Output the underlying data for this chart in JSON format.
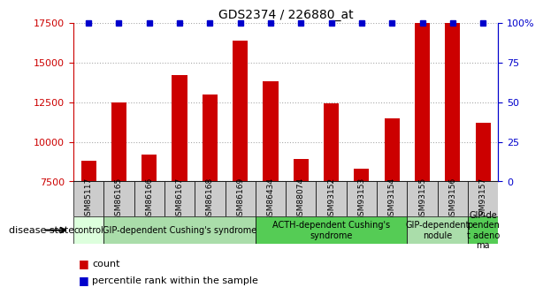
{
  "title": "GDS2374 / 226880_at",
  "samples": [
    "GSM85117",
    "GSM86165",
    "GSM86166",
    "GSM86167",
    "GSM86168",
    "GSM86169",
    "GSM86434",
    "GSM88074",
    "GSM93152",
    "GSM93153",
    "GSM93154",
    "GSM93155",
    "GSM93156",
    "GSM93157"
  ],
  "counts": [
    8800,
    12500,
    9200,
    14200,
    13000,
    16400,
    13800,
    8900,
    12400,
    8300,
    11500,
    17500,
    17500,
    11200
  ],
  "ymin": 7500,
  "ymax": 17500,
  "yticks": [
    7500,
    10000,
    12500,
    15000,
    17500
  ],
  "ytick_labels": [
    "7500",
    "10000",
    "12500",
    "15000",
    "17500"
  ],
  "right_yticks": [
    0,
    25,
    50,
    75,
    100
  ],
  "right_ytick_labels": [
    "0",
    "25",
    "50",
    "75",
    "100%"
  ],
  "bar_color": "#cc0000",
  "percentile_color": "#0000cc",
  "grid_color": "#aaaaaa",
  "disease_groups": [
    {
      "label": "control",
      "start": 0,
      "end": 1,
      "color": "#ddffdd"
    },
    {
      "label": "GIP-dependent Cushing's syndrome",
      "start": 1,
      "end": 6,
      "color": "#aaddaa"
    },
    {
      "label": "ACTH-dependent Cushing's\nsyndrome",
      "start": 6,
      "end": 11,
      "color": "#55cc55"
    },
    {
      "label": "GIP-dependent\nnodule",
      "start": 11,
      "end": 13,
      "color": "#aaddaa"
    },
    {
      "label": "GIP-de\npenden\nt adeno\nma",
      "start": 13,
      "end": 14,
      "color": "#55cc55"
    }
  ],
  "disease_state_label": "disease state",
  "legend_count_label": "count",
  "legend_percentile_label": "percentile rank within the sample",
  "tick_label_color": "#cc0000",
  "right_tick_label_color": "#0000cc",
  "title_color": "#000000",
  "bar_width": 0.5,
  "gsm_label_fontsize": 6.5,
  "group_label_fontsize": 7,
  "legend_fontsize": 8,
  "gsm_bg_color": "#cccccc"
}
